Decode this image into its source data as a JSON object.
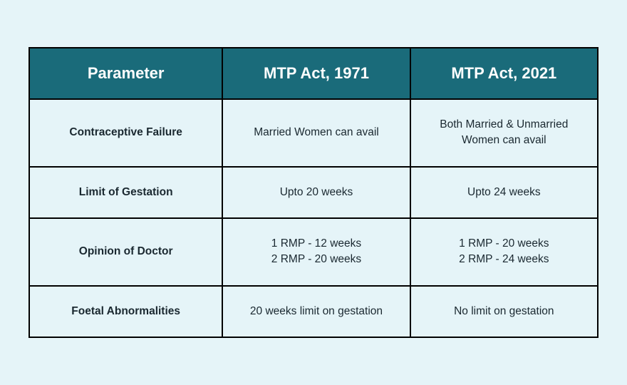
{
  "table": {
    "columns": [
      "Parameter",
      "MTP Act, 1971",
      "MTP Act, 2021"
    ],
    "rows": [
      {
        "param": "Contraceptive Failure",
        "col1971": "Married Women can avail",
        "col2021": "Both Married & Unmarried\nWomen can avail"
      },
      {
        "param": "Limit of Gestation",
        "col1971": "Upto 20 weeks",
        "col2021": "Upto 24 weeks"
      },
      {
        "param": "Opinion of Doctor",
        "col1971": "1 RMP - 12 weeks\n2 RMP - 20 weeks",
        "col2021": "1 RMP - 20 weeks\n2 RMP - 24 weeks"
      },
      {
        "param": "Foetal Abnormalities",
        "col1971": "20 weeks limit on gestation",
        "col2021": "No limit on gestation"
      }
    ],
    "header_bg": "#1a6b7a",
    "header_fg": "#ffffff",
    "body_bg": "#e5f4f8",
    "body_fg": "#1a2830",
    "border_color": "#000000",
    "page_bg": "#e5f4f8",
    "header_fontsize": 22,
    "cell_fontsize": 15.5,
    "col_widths": [
      "34%",
      "33%",
      "33%"
    ]
  }
}
